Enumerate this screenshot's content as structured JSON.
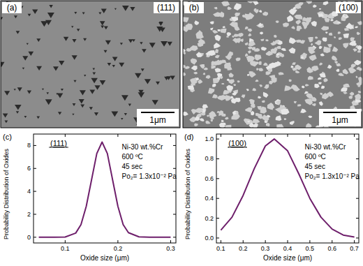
{
  "images": [
    {
      "panel_label": "(a)",
      "label": "(111)",
      "scale_bar": "1μm"
    },
    {
      "panel_label": "(b)",
      "label": "(100)",
      "scale_bar": "1μm"
    }
  ],
  "chart_data": [
    {
      "type": "line",
      "panel_label": "(c)",
      "title": "(111)",
      "annotations": [
        "Ni-30 wt.%Cr",
        "600 ºC",
        "45 sec",
        "Po₂= 1.3x10⁻² Pa"
      ],
      "x_label": "Oxide size (μm)",
      "y_label": "Probability Distribution of Oxides",
      "x": [
        0.05,
        0.08,
        0.1,
        0.12,
        0.13,
        0.14,
        0.15,
        0.16,
        0.17,
        0.18,
        0.19,
        0.2,
        0.21,
        0.22,
        0.24,
        0.26,
        0.3
      ],
      "values": [
        0,
        0,
        0.02,
        0.36,
        1.1,
        2.7,
        5.0,
        7.3,
        8.3,
        7.3,
        5.0,
        2.7,
        1.1,
        0.4,
        0.03,
        0,
        0
      ],
      "color": "#6e1f6b",
      "xlim": [
        0.04,
        0.31
      ],
      "xticks": [
        0.1,
        0.2,
        0.3
      ],
      "ylim": [
        -0.5,
        9
      ],
      "yticks": [
        0,
        2,
        4,
        6,
        8
      ]
    },
    {
      "type": "line",
      "panel_label": "(d)",
      "title": "(100)",
      "annotations": [
        "Ni-30 wt.%Cr",
        "600 ºC",
        "45 sec",
        "Po₂= 1.3x10⁻² Pa"
      ],
      "x_label": "Oxide size (μm)",
      "y_label": "Probability Distribution of Oxides",
      "x": [
        0.1,
        0.15,
        0.2,
        0.25,
        0.3,
        0.34,
        0.4,
        0.45,
        0.5,
        0.55,
        0.6,
        0.65,
        0.7
      ],
      "values": [
        0.08,
        0.21,
        0.43,
        0.7,
        0.93,
        1.0,
        0.88,
        0.65,
        0.4,
        0.21,
        0.09,
        0.03,
        0.01
      ],
      "color": "#6e1f6b",
      "xlim": [
        0.08,
        0.72
      ],
      "xticks": [
        0.1,
        0.2,
        0.3,
        0.4,
        0.5,
        0.6,
        0.7
      ],
      "ylim": [
        -0.05,
        1.05
      ],
      "yticks": [
        {
          "value": 0,
          "label": "0.0"
        },
        0.2,
        0.4,
        0.6,
        0.8,
        {
          "value": 1,
          "label": "1.0"
        }
      ]
    }
  ]
}
